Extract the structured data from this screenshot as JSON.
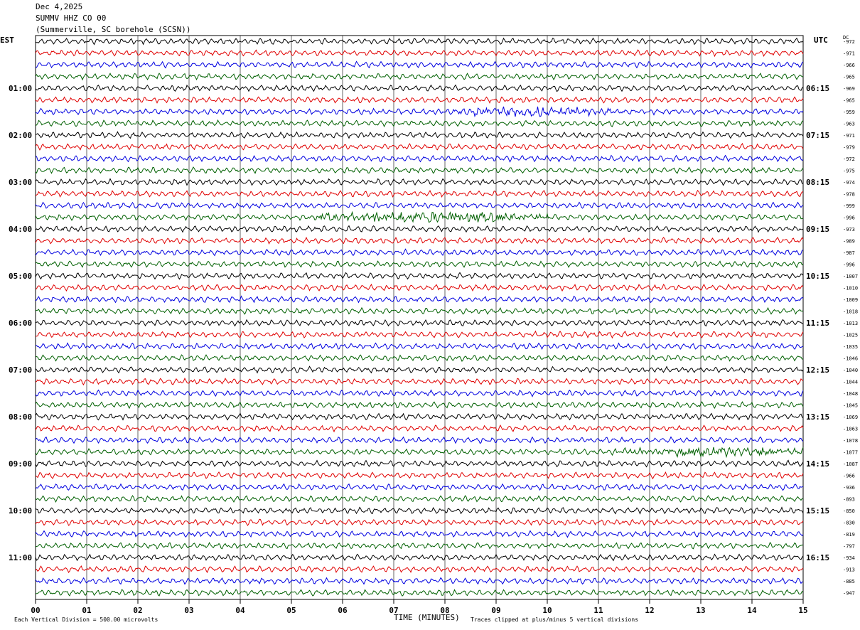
{
  "header": {
    "date": "Dec 4,2025",
    "station": "SUMMV HHZ CO 00",
    "location": "(Summerville, SC borehole (SCSN))"
  },
  "axis": {
    "left_zone": "EST",
    "right_zone": "UTC",
    "dc_label": "DC",
    "xlabel": "TIME (MINUTES)",
    "x_ticks": [
      "00",
      "01",
      "02",
      "03",
      "04",
      "05",
      "06",
      "07",
      "08",
      "09",
      "10",
      "11",
      "12",
      "13",
      "14",
      "15"
    ]
  },
  "footer": {
    "scale_note": "Each Vertical Division =  500.00 microvolts",
    "clip_note": "Traces clipped at plus/minus 5 vertical divisions"
  },
  "colors": {
    "cycle": [
      "#000000",
      "#e00000",
      "#0000e0",
      "#006000"
    ]
  },
  "chart_data": {
    "type": "line",
    "title": "SUMMV HHZ CO 00",
    "x_range": [
      0,
      15
    ],
    "xlabel": "TIME (MINUTES)",
    "grid": true,
    "rows": [
      {
        "est": "",
        "utc": "",
        "dc": "-972"
      },
      {
        "est": "",
        "utc": "",
        "dc": "-971"
      },
      {
        "est": "",
        "utc": "",
        "dc": "-966"
      },
      {
        "est": "",
        "utc": "",
        "dc": "-965"
      },
      {
        "est": "01:00",
        "utc": "06:15",
        "dc": "-969"
      },
      {
        "est": "",
        "utc": "",
        "dc": "-965"
      },
      {
        "est": "",
        "utc": "",
        "dc": "-959",
        "burst": [
          8.2,
          11.3,
          2.2
        ]
      },
      {
        "est": "",
        "utc": "",
        "dc": "-963"
      },
      {
        "est": "02:00",
        "utc": "07:15",
        "dc": "-971"
      },
      {
        "est": "",
        "utc": "",
        "dc": "-979"
      },
      {
        "est": "",
        "utc": "",
        "dc": "-972"
      },
      {
        "est": "",
        "utc": "",
        "dc": "-975"
      },
      {
        "est": "03:00",
        "utc": "08:15",
        "dc": "-974"
      },
      {
        "est": "",
        "utc": "",
        "dc": "-978"
      },
      {
        "est": "",
        "utc": "",
        "dc": "-999"
      },
      {
        "est": "",
        "utc": "",
        "dc": "-996",
        "burst": [
          5.5,
          10.0,
          2.8
        ]
      },
      {
        "est": "04:00",
        "utc": "09:15",
        "dc": "-973"
      },
      {
        "est": "",
        "utc": "",
        "dc": "-989"
      },
      {
        "est": "",
        "utc": "",
        "dc": "-987"
      },
      {
        "est": "",
        "utc": "",
        "dc": "-996"
      },
      {
        "est": "05:00",
        "utc": "10:15",
        "dc": "-1007"
      },
      {
        "est": "",
        "utc": "",
        "dc": "-1010"
      },
      {
        "est": "",
        "utc": "",
        "dc": "-1009"
      },
      {
        "est": "",
        "utc": "",
        "dc": "-1018"
      },
      {
        "est": "06:00",
        "utc": "11:15",
        "dc": "-1013"
      },
      {
        "est": "",
        "utc": "",
        "dc": "-1025"
      },
      {
        "est": "",
        "utc": "",
        "dc": "-1035"
      },
      {
        "est": "",
        "utc": "",
        "dc": "-1046"
      },
      {
        "est": "07:00",
        "utc": "12:15",
        "dc": "-1040"
      },
      {
        "est": "",
        "utc": "",
        "dc": "-1044"
      },
      {
        "est": "",
        "utc": "",
        "dc": "-1048"
      },
      {
        "est": "",
        "utc": "",
        "dc": "-1045"
      },
      {
        "est": "08:00",
        "utc": "13:15",
        "dc": "-1069"
      },
      {
        "est": "",
        "utc": "",
        "dc": "-1063"
      },
      {
        "est": "",
        "utc": "",
        "dc": "-1078"
      },
      {
        "est": "",
        "utc": "",
        "dc": "-1077",
        "burst": [
          11.3,
          15.0,
          2.2
        ]
      },
      {
        "est": "09:00",
        "utc": "14:15",
        "dc": "-1087"
      },
      {
        "est": "",
        "utc": "",
        "dc": "-966"
      },
      {
        "est": "",
        "utc": "",
        "dc": "-936"
      },
      {
        "est": "",
        "utc": "",
        "dc": "-893"
      },
      {
        "est": "10:00",
        "utc": "15:15",
        "dc": "-850"
      },
      {
        "est": "",
        "utc": "",
        "dc": "-830"
      },
      {
        "est": "",
        "utc": "",
        "dc": "-819"
      },
      {
        "est": "",
        "utc": "",
        "dc": "-797"
      },
      {
        "est": "11:00",
        "utc": "16:15",
        "dc": "-934"
      },
      {
        "est": "",
        "utc": "",
        "dc": "-913"
      },
      {
        "est": "",
        "utc": "",
        "dc": "-885"
      },
      {
        "est": "",
        "utc": "",
        "dc": "-947"
      }
    ]
  }
}
